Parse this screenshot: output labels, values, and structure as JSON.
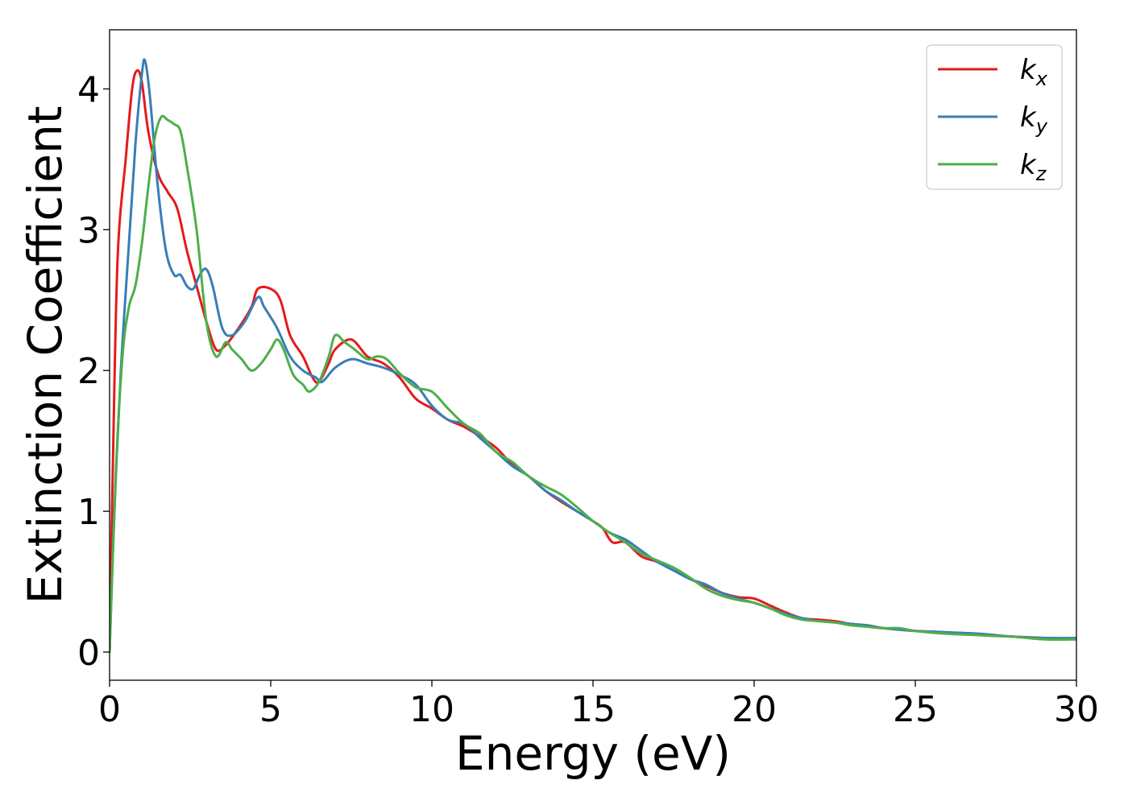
{
  "chart_data": {
    "type": "line",
    "xlabel": "Energy (eV)",
    "ylabel": "Extinction Coefficient",
    "xlim": [
      0,
      30
    ],
    "ylim": [
      -0.2,
      4.42
    ],
    "xticks": [
      0,
      5,
      10,
      15,
      20,
      25,
      30
    ],
    "yticks": [
      0,
      1,
      2,
      3,
      4
    ],
    "grid": false,
    "legend_position": "top-right",
    "series": [
      {
        "name": "k_x",
        "label_base": "k",
        "label_sub": "x",
        "color": "#e41a1c",
        "points": [
          [
            0,
            0
          ],
          [
            0.1,
            1.3
          ],
          [
            0.25,
            2.8
          ],
          [
            0.5,
            3.5
          ],
          [
            0.7,
            4.0
          ],
          [
            0.85,
            4.13
          ],
          [
            1.0,
            4.05
          ],
          [
            1.2,
            3.7
          ],
          [
            1.5,
            3.4
          ],
          [
            1.8,
            3.27
          ],
          [
            2.1,
            3.15
          ],
          [
            2.4,
            2.85
          ],
          [
            2.7,
            2.6
          ],
          [
            3.0,
            2.35
          ],
          [
            3.3,
            2.15
          ],
          [
            3.6,
            2.18
          ],
          [
            4.0,
            2.3
          ],
          [
            4.4,
            2.45
          ],
          [
            4.6,
            2.58
          ],
          [
            5.0,
            2.58
          ],
          [
            5.3,
            2.5
          ],
          [
            5.6,
            2.25
          ],
          [
            6.0,
            2.1
          ],
          [
            6.3,
            1.95
          ],
          [
            6.5,
            1.92
          ],
          [
            6.8,
            2.05
          ],
          [
            7.0,
            2.15
          ],
          [
            7.5,
            2.22
          ],
          [
            8.0,
            2.1
          ],
          [
            8.5,
            2.05
          ],
          [
            9.0,
            1.95
          ],
          [
            9.5,
            1.8
          ],
          [
            10.0,
            1.73
          ],
          [
            10.5,
            1.65
          ],
          [
            11.0,
            1.6
          ],
          [
            11.5,
            1.53
          ],
          [
            12.0,
            1.45
          ],
          [
            12.5,
            1.33
          ],
          [
            13.0,
            1.25
          ],
          [
            13.5,
            1.15
          ],
          [
            14.0,
            1.07
          ],
          [
            14.5,
            1.0
          ],
          [
            15.0,
            0.93
          ],
          [
            15.3,
            0.88
          ],
          [
            15.6,
            0.78
          ],
          [
            16.0,
            0.78
          ],
          [
            16.5,
            0.68
          ],
          [
            17.0,
            0.64
          ],
          [
            17.5,
            0.58
          ],
          [
            18.0,
            0.52
          ],
          [
            18.5,
            0.47
          ],
          [
            19.0,
            0.42
          ],
          [
            19.5,
            0.39
          ],
          [
            20.0,
            0.38
          ],
          [
            20.5,
            0.33
          ],
          [
            21.0,
            0.28
          ],
          [
            21.5,
            0.24
          ],
          [
            22.0,
            0.23
          ],
          [
            22.5,
            0.22
          ],
          [
            23.0,
            0.2
          ],
          [
            23.5,
            0.19
          ],
          [
            24.0,
            0.17
          ],
          [
            24.5,
            0.16
          ],
          [
            25.0,
            0.15
          ],
          [
            26.0,
            0.14
          ],
          [
            27.0,
            0.12
          ],
          [
            28.0,
            0.11
          ],
          [
            29.0,
            0.1
          ],
          [
            30.0,
            0.09
          ]
        ]
      },
      {
        "name": "k_y",
        "label_base": "k",
        "label_sub": "y",
        "color": "#377eb8",
        "points": [
          [
            0,
            0
          ],
          [
            0.15,
            1.0
          ],
          [
            0.35,
            2.0
          ],
          [
            0.6,
            2.9
          ],
          [
            0.8,
            3.6
          ],
          [
            1.0,
            4.1
          ],
          [
            1.1,
            4.2
          ],
          [
            1.25,
            3.95
          ],
          [
            1.5,
            3.3
          ],
          [
            1.75,
            2.85
          ],
          [
            2.0,
            2.68
          ],
          [
            2.2,
            2.68
          ],
          [
            2.4,
            2.6
          ],
          [
            2.6,
            2.58
          ],
          [
            2.8,
            2.68
          ],
          [
            3.0,
            2.72
          ],
          [
            3.2,
            2.6
          ],
          [
            3.5,
            2.3
          ],
          [
            3.8,
            2.25
          ],
          [
            4.2,
            2.35
          ],
          [
            4.6,
            2.52
          ],
          [
            4.8,
            2.45
          ],
          [
            5.2,
            2.3
          ],
          [
            5.6,
            2.1
          ],
          [
            6.0,
            2.0
          ],
          [
            6.4,
            1.95
          ],
          [
            6.6,
            1.92
          ],
          [
            7.0,
            2.02
          ],
          [
            7.5,
            2.08
          ],
          [
            8.0,
            2.05
          ],
          [
            8.5,
            2.02
          ],
          [
            9.0,
            1.97
          ],
          [
            9.5,
            1.9
          ],
          [
            10.0,
            1.75
          ],
          [
            10.5,
            1.65
          ],
          [
            11.0,
            1.62
          ],
          [
            11.5,
            1.52
          ],
          [
            12.0,
            1.42
          ],
          [
            12.5,
            1.32
          ],
          [
            13.0,
            1.25
          ],
          [
            13.5,
            1.15
          ],
          [
            14.0,
            1.08
          ],
          [
            14.5,
            1.0
          ],
          [
            15.0,
            0.93
          ],
          [
            15.5,
            0.85
          ],
          [
            16.0,
            0.8
          ],
          [
            16.5,
            0.72
          ],
          [
            17.0,
            0.64
          ],
          [
            17.5,
            0.58
          ],
          [
            18.0,
            0.52
          ],
          [
            18.5,
            0.48
          ],
          [
            19.0,
            0.42
          ],
          [
            19.5,
            0.38
          ],
          [
            20.0,
            0.35
          ],
          [
            20.5,
            0.31
          ],
          [
            21.0,
            0.27
          ],
          [
            21.5,
            0.24
          ],
          [
            22.0,
            0.22
          ],
          [
            22.5,
            0.21
          ],
          [
            23.0,
            0.2
          ],
          [
            23.5,
            0.19
          ],
          [
            24.0,
            0.17
          ],
          [
            25.0,
            0.15
          ],
          [
            26.0,
            0.14
          ],
          [
            27.0,
            0.13
          ],
          [
            28.0,
            0.11
          ],
          [
            29.0,
            0.1
          ],
          [
            30.0,
            0.1
          ]
        ]
      },
      {
        "name": "k_z",
        "label_base": "k",
        "label_sub": "z",
        "color": "#4daf4a",
        "points": [
          [
            0,
            0
          ],
          [
            0.2,
            1.3
          ],
          [
            0.4,
            2.1
          ],
          [
            0.6,
            2.45
          ],
          [
            0.8,
            2.6
          ],
          [
            1.0,
            2.9
          ],
          [
            1.2,
            3.3
          ],
          [
            1.4,
            3.65
          ],
          [
            1.6,
            3.8
          ],
          [
            1.8,
            3.78
          ],
          [
            2.0,
            3.75
          ],
          [
            2.2,
            3.7
          ],
          [
            2.4,
            3.45
          ],
          [
            2.7,
            3.0
          ],
          [
            3.0,
            2.35
          ],
          [
            3.3,
            2.1
          ],
          [
            3.6,
            2.2
          ],
          [
            3.8,
            2.15
          ],
          [
            4.1,
            2.08
          ],
          [
            4.4,
            2.0
          ],
          [
            4.7,
            2.05
          ],
          [
            5.0,
            2.15
          ],
          [
            5.2,
            2.22
          ],
          [
            5.4,
            2.15
          ],
          [
            5.7,
            1.97
          ],
          [
            6.0,
            1.9
          ],
          [
            6.2,
            1.85
          ],
          [
            6.5,
            1.92
          ],
          [
            6.8,
            2.1
          ],
          [
            7.0,
            2.25
          ],
          [
            7.3,
            2.2
          ],
          [
            7.6,
            2.15
          ],
          [
            8.0,
            2.08
          ],
          [
            8.3,
            2.1
          ],
          [
            8.6,
            2.08
          ],
          [
            9.0,
            1.98
          ],
          [
            9.5,
            1.88
          ],
          [
            10.0,
            1.85
          ],
          [
            10.5,
            1.73
          ],
          [
            11.0,
            1.62
          ],
          [
            11.5,
            1.55
          ],
          [
            12.0,
            1.42
          ],
          [
            12.5,
            1.35
          ],
          [
            13.0,
            1.25
          ],
          [
            13.5,
            1.18
          ],
          [
            14.0,
            1.12
          ],
          [
            14.5,
            1.03
          ],
          [
            15.0,
            0.93
          ],
          [
            15.5,
            0.85
          ],
          [
            16.0,
            0.78
          ],
          [
            16.5,
            0.7
          ],
          [
            17.0,
            0.65
          ],
          [
            17.5,
            0.6
          ],
          [
            18.0,
            0.53
          ],
          [
            18.5,
            0.45
          ],
          [
            19.0,
            0.4
          ],
          [
            19.5,
            0.37
          ],
          [
            20.0,
            0.35
          ],
          [
            20.5,
            0.31
          ],
          [
            21.0,
            0.26
          ],
          [
            21.5,
            0.23
          ],
          [
            22.0,
            0.22
          ],
          [
            22.5,
            0.21
          ],
          [
            23.0,
            0.19
          ],
          [
            23.5,
            0.18
          ],
          [
            24.0,
            0.17
          ],
          [
            24.5,
            0.17
          ],
          [
            25.0,
            0.15
          ],
          [
            26.0,
            0.13
          ],
          [
            27.0,
            0.12
          ],
          [
            28.0,
            0.11
          ],
          [
            29.0,
            0.09
          ],
          [
            30.0,
            0.09
          ]
        ]
      }
    ]
  }
}
